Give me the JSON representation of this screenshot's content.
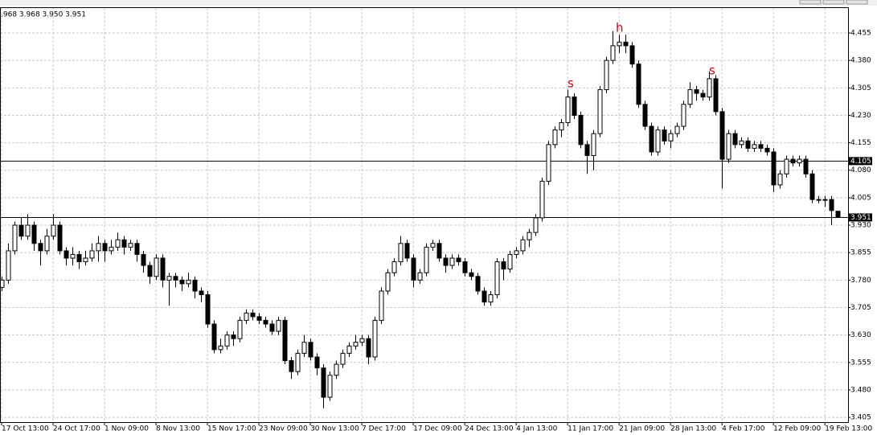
{
  "chart_data": {
    "type": "candlestick",
    "info": ".968 3.968 3.950 3.951",
    "annotations": [
      "s",
      "h",
      "s"
    ],
    "ylim": [
      3.392,
      4.523
    ],
    "yticks": [
      4.455,
      {
        "value": 4.38,
        "label": "4.380"
      },
      4.305,
      {
        "value": 4.23,
        "label": "4.230"
      },
      4.155,
      {
        "value": 4.08,
        "label": "4.080"
      },
      4.005,
      {
        "value": 3.93,
        "label": "3.930"
      },
      3.855,
      {
        "value": 3.78,
        "label": "3.780"
      },
      3.705,
      {
        "value": 3.63,
        "label": "3.630"
      },
      3.555,
      {
        "value": 3.48,
        "label": "3.480"
      },
      3.405
    ],
    "xlim": [
      -0.25,
      131.6
    ],
    "xticks": [
      {
        "value": 0,
        "label": "17 Oct 13:00"
      },
      {
        "value": 8,
        "label": "24 Oct 17:00"
      },
      {
        "value": 16,
        "label": "1 Nov 09:00"
      },
      {
        "value": 24,
        "label": "8 Nov 13:00"
      },
      {
        "value": 32,
        "label": "15 Nov 17:00"
      },
      {
        "value": 40,
        "label": "23 Nov 09:00"
      },
      {
        "value": 48,
        "label": "30 Nov 13:00"
      },
      {
        "value": 56,
        "label": "7 Dec 17:00"
      },
      {
        "value": 64,
        "label": "17 Dec 09:00"
      },
      {
        "value": 72,
        "label": "24 Dec 13:00"
      },
      {
        "value": 80,
        "label": "4 Jan 13:00"
      },
      {
        "value": 88,
        "label": "11 Jan 17:00"
      },
      {
        "value": 96,
        "label": "21 Jan 09:00"
      },
      {
        "value": 104,
        "label": "28 Jan 13:00"
      },
      {
        "value": 112,
        "label": "4 Feb 17:00"
      },
      {
        "value": 120,
        "label": "12 Feb 09:00"
      },
      {
        "value": 128,
        "label": "19 Feb 13:00"
      }
    ],
    "grid": true,
    "hlines": [
      4.105,
      3.951
    ],
    "up_color": "#ffffff",
    "down_color": "#000000",
    "candles": [
      [
        3.76,
        3.79,
        3.75,
        3.78
      ],
      [
        3.78,
        3.88,
        3.77,
        3.86
      ],
      [
        3.86,
        3.94,
        3.85,
        3.93
      ],
      [
        3.93,
        3.95,
        3.89,
        3.9
      ],
      [
        3.9,
        3.96,
        3.89,
        3.93
      ],
      [
        3.93,
        3.94,
        3.86,
        3.88
      ],
      [
        3.88,
        3.89,
        3.82,
        3.86
      ],
      [
        3.86,
        3.92,
        3.85,
        3.9
      ],
      [
        3.9,
        3.96,
        3.89,
        3.93
      ],
      [
        3.93,
        3.94,
        3.85,
        3.86
      ],
      [
        3.86,
        3.87,
        3.82,
        3.84
      ],
      [
        3.84,
        3.87,
        3.82,
        3.85
      ],
      [
        3.85,
        3.86,
        3.81,
        3.83
      ],
      [
        3.83,
        3.86,
        3.82,
        3.84
      ],
      [
        3.84,
        3.88,
        3.83,
        3.86
      ],
      [
        3.86,
        3.9,
        3.83,
        3.88
      ],
      [
        3.88,
        3.89,
        3.83,
        3.86
      ],
      [
        3.86,
        3.89,
        3.85,
        3.87
      ],
      [
        3.87,
        3.91,
        3.86,
        3.89
      ],
      [
        3.89,
        3.9,
        3.85,
        3.87
      ],
      [
        3.87,
        3.89,
        3.86,
        3.88
      ],
      [
        3.88,
        3.89,
        3.83,
        3.85
      ],
      [
        3.85,
        3.86,
        3.8,
        3.82
      ],
      [
        3.82,
        3.83,
        3.77,
        3.79
      ],
      [
        3.79,
        3.85,
        3.78,
        3.84
      ],
      [
        3.84,
        3.85,
        3.76,
        3.78
      ],
      [
        3.78,
        3.8,
        3.71,
        3.79
      ],
      [
        3.79,
        3.8,
        3.76,
        3.78
      ],
      [
        3.78,
        3.79,
        3.75,
        3.77
      ],
      [
        3.77,
        3.8,
        3.76,
        3.78
      ],
      [
        3.78,
        3.79,
        3.73,
        3.75
      ],
      [
        3.75,
        3.76,
        3.72,
        3.74
      ],
      [
        3.74,
        3.75,
        3.65,
        3.66
      ],
      [
        3.66,
        3.67,
        3.58,
        3.59
      ],
      [
        3.59,
        3.62,
        3.58,
        3.6
      ],
      [
        3.6,
        3.64,
        3.59,
        3.63
      ],
      [
        3.63,
        3.64,
        3.6,
        3.62
      ],
      [
        3.62,
        3.68,
        3.61,
        3.67
      ],
      [
        3.67,
        3.7,
        3.66,
        3.69
      ],
      [
        3.69,
        3.7,
        3.67,
        3.68
      ],
      [
        3.68,
        3.69,
        3.66,
        3.67
      ],
      [
        3.67,
        3.68,
        3.65,
        3.66
      ],
      [
        3.66,
        3.67,
        3.63,
        3.64
      ],
      [
        3.64,
        3.68,
        3.63,
        3.67
      ],
      [
        3.67,
        3.68,
        3.55,
        3.56
      ],
      [
        3.56,
        3.57,
        3.51,
        3.53
      ],
      [
        3.53,
        3.59,
        3.52,
        3.58
      ],
      [
        3.58,
        3.63,
        3.57,
        3.61
      ],
      [
        3.61,
        3.62,
        3.56,
        3.57
      ],
      [
        3.57,
        3.58,
        3.52,
        3.54
      ],
      [
        3.54,
        3.55,
        3.43,
        3.46
      ],
      [
        3.46,
        3.53,
        3.45,
        3.52
      ],
      [
        3.52,
        3.56,
        3.51,
        3.55
      ],
      [
        3.55,
        3.59,
        3.54,
        3.58
      ],
      [
        3.58,
        3.61,
        3.57,
        3.6
      ],
      [
        3.6,
        3.63,
        3.59,
        3.61
      ],
      [
        3.61,
        3.63,
        3.6,
        3.62
      ],
      [
        3.62,
        3.63,
        3.55,
        3.57
      ],
      [
        3.57,
        3.68,
        3.56,
        3.67
      ],
      [
        3.67,
        3.76,
        3.66,
        3.75
      ],
      [
        3.75,
        3.81,
        3.74,
        3.8
      ],
      [
        3.8,
        3.84,
        3.79,
        3.83
      ],
      [
        3.83,
        3.9,
        3.82,
        3.88
      ],
      [
        3.88,
        3.89,
        3.83,
        3.84
      ],
      [
        3.84,
        3.85,
        3.76,
        3.78
      ],
      [
        3.78,
        3.81,
        3.77,
        3.8
      ],
      [
        3.8,
        3.88,
        3.79,
        3.87
      ],
      [
        3.87,
        3.89,
        3.86,
        3.88
      ],
      [
        3.88,
        3.89,
        3.83,
        3.84
      ],
      [
        3.84,
        3.85,
        3.8,
        3.82
      ],
      [
        3.82,
        3.85,
        3.81,
        3.84
      ],
      [
        3.84,
        3.85,
        3.82,
        3.83
      ],
      [
        3.83,
        3.84,
        3.79,
        3.8
      ],
      [
        3.8,
        3.81,
        3.78,
        3.79
      ],
      [
        3.79,
        3.8,
        3.74,
        3.75
      ],
      [
        3.75,
        3.76,
        3.71,
        3.72
      ],
      [
        3.72,
        3.75,
        3.71,
        3.74
      ],
      [
        3.74,
        3.84,
        3.73,
        3.83
      ],
      [
        3.83,
        3.84,
        3.78,
        3.81
      ],
      [
        3.81,
        3.86,
        3.8,
        3.85
      ],
      [
        3.85,
        3.87,
        3.84,
        3.86
      ],
      [
        3.86,
        3.9,
        3.85,
        3.89
      ],
      [
        3.89,
        3.92,
        3.87,
        3.91
      ],
      [
        3.91,
        3.96,
        3.9,
        3.95
      ],
      [
        3.95,
        4.06,
        3.94,
        4.05
      ],
      [
        4.05,
        4.16,
        4.04,
        4.15
      ],
      [
        4.15,
        4.2,
        4.14,
        4.19
      ],
      [
        4.19,
        4.22,
        4.17,
        4.21
      ],
      [
        4.21,
        4.3,
        4.2,
        4.28
      ],
      [
        4.28,
        4.29,
        4.22,
        4.23
      ],
      [
        4.23,
        4.24,
        4.14,
        4.15
      ],
      [
        4.15,
        4.16,
        4.07,
        4.12
      ],
      [
        4.12,
        4.19,
        4.08,
        4.18
      ],
      [
        4.18,
        4.31,
        4.17,
        4.3
      ],
      [
        4.3,
        4.39,
        4.29,
        4.38
      ],
      [
        4.38,
        4.46,
        4.37,
        4.42
      ],
      [
        4.42,
        4.45,
        4.4,
        4.43
      ],
      [
        4.43,
        4.45,
        4.4,
        4.42
      ],
      [
        4.42,
        4.43,
        4.36,
        4.37
      ],
      [
        4.37,
        4.38,
        4.25,
        4.26
      ],
      [
        4.26,
        4.27,
        4.19,
        4.2
      ],
      [
        4.2,
        4.21,
        4.12,
        4.13
      ],
      [
        4.13,
        4.2,
        4.12,
        4.19
      ],
      [
        4.19,
        4.2,
        4.15,
        4.16
      ],
      [
        4.16,
        4.19,
        4.14,
        4.18
      ],
      [
        4.18,
        4.21,
        4.17,
        4.2
      ],
      [
        4.2,
        4.27,
        4.19,
        4.26
      ],
      [
        4.26,
        4.32,
        4.25,
        4.3
      ],
      [
        4.3,
        4.31,
        4.27,
        4.29
      ],
      [
        4.29,
        4.3,
        4.27,
        4.28
      ],
      [
        4.28,
        4.35,
        4.27,
        4.33
      ],
      [
        4.33,
        4.34,
        4.23,
        4.24
      ],
      [
        4.24,
        4.25,
        4.03,
        4.11
      ],
      [
        4.11,
        4.19,
        4.1,
        4.18
      ],
      [
        4.18,
        4.19,
        4.14,
        4.15
      ],
      [
        4.15,
        4.17,
        4.14,
        4.16
      ],
      [
        4.16,
        4.17,
        4.13,
        4.14
      ],
      [
        4.14,
        4.16,
        4.13,
        4.15
      ],
      [
        4.15,
        4.16,
        4.13,
        4.14
      ],
      [
        4.14,
        4.15,
        4.12,
        4.13
      ],
      [
        4.13,
        4.14,
        4.02,
        4.04
      ],
      [
        4.04,
        4.08,
        4.03,
        4.07
      ],
      [
        4.07,
        4.12,
        4.06,
        4.11
      ],
      [
        4.11,
        4.12,
        4.09,
        4.1
      ],
      [
        4.1,
        4.12,
        4.09,
        4.11
      ],
      [
        4.11,
        4.12,
        4.06,
        4.07
      ],
      [
        4.07,
        4.08,
        3.99,
        4.0
      ],
      [
        4.0,
        4.01,
        3.99,
        4.0
      ],
      [
        4.0,
        4.01,
        3.98,
        4.0
      ],
      [
        4.0,
        4.01,
        3.93,
        3.97
      ],
      [
        3.968,
        3.968,
        3.95,
        3.951
      ]
    ]
  }
}
